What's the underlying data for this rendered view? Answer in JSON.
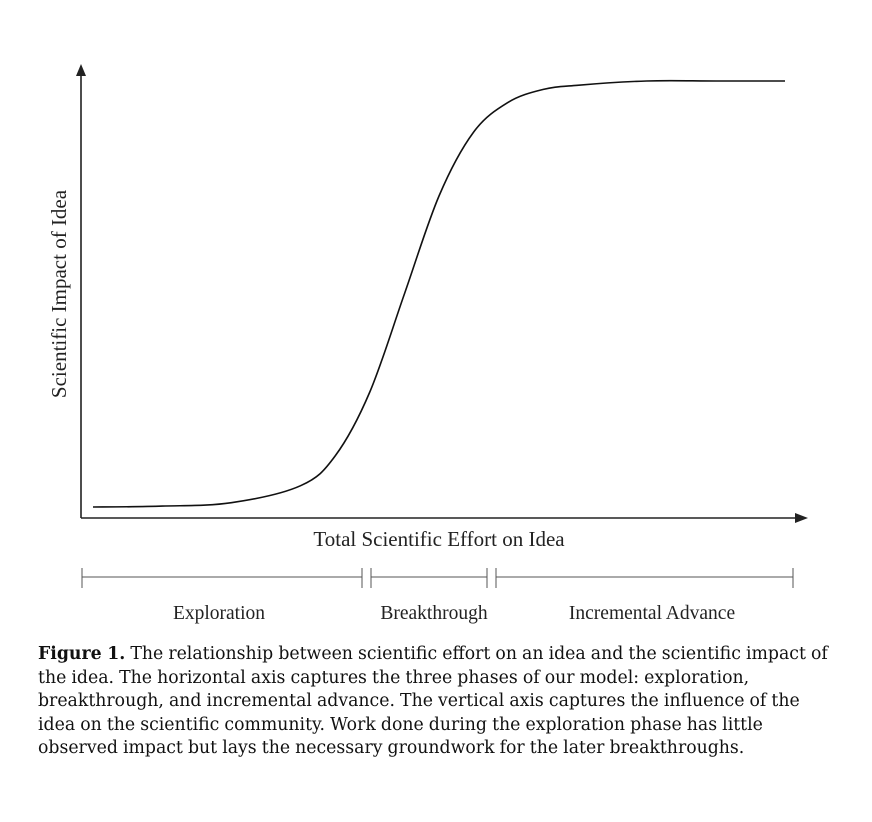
{
  "chart_data": {
    "type": "line",
    "xlabel": "Total Scientific Effort on Idea",
    "ylabel": "Scientific Impact of Idea",
    "series": [
      {
        "x": [
          0,
          0.1,
          0.2,
          0.3,
          0.35,
          0.4,
          0.45,
          0.5,
          0.55,
          0.6,
          0.65,
          0.7,
          0.8,
          0.9,
          1.0
        ],
        "y": [
          0.0,
          0.002,
          0.01,
          0.05,
          0.12,
          0.27,
          0.5,
          0.73,
          0.88,
          0.95,
          0.98,
          0.99,
          1.0,
          1.0,
          1.0
        ]
      }
    ],
    "grid": false,
    "phases": [
      "Exploration",
      "Breakthrough",
      "Incremental Advance"
    ]
  },
  "caption": {
    "label": "Figure 1.",
    "text": " The relationship between scientific effort on an idea and the scientific impact of the idea. The horizontal axis captures the three phases of our model: exploration, breakthrough, and incremental advance. The vertical axis captures the influence of the idea on the scientific community. Work done during the exploration phase has little observed impact but lays the necessary groundwork for the later breakthroughs."
  }
}
